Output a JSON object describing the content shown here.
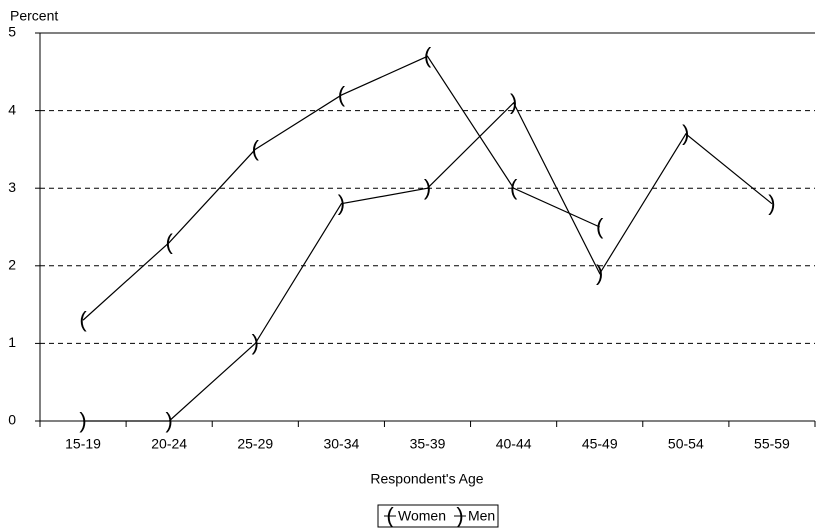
{
  "chart_data": {
    "type": "line",
    "y_label": "Percent",
    "x_label": "Respondent's Age",
    "categories": [
      "15-19",
      "20-24",
      "25-29",
      "30-34",
      "35-39",
      "40-44",
      "45-49",
      "50-54",
      "55-59"
    ],
    "series": [
      {
        "name": "Women",
        "color": "#000000",
        "marker": "(",
        "values": [
          1.3,
          2.3,
          3.5,
          4.2,
          4.7,
          3.0,
          2.5,
          null,
          null
        ]
      },
      {
        "name": "Men",
        "color": "#000000",
        "marker": ")",
        "values": [
          0,
          0,
          1.0,
          2.8,
          3.0,
          4.1,
          1.9,
          3.7,
          2.8
        ]
      }
    ],
    "ylim": [
      0,
      5
    ],
    "yticks": [
      0,
      1,
      2,
      3,
      4,
      5
    ],
    "grid": true,
    "legend": "bottom"
  }
}
